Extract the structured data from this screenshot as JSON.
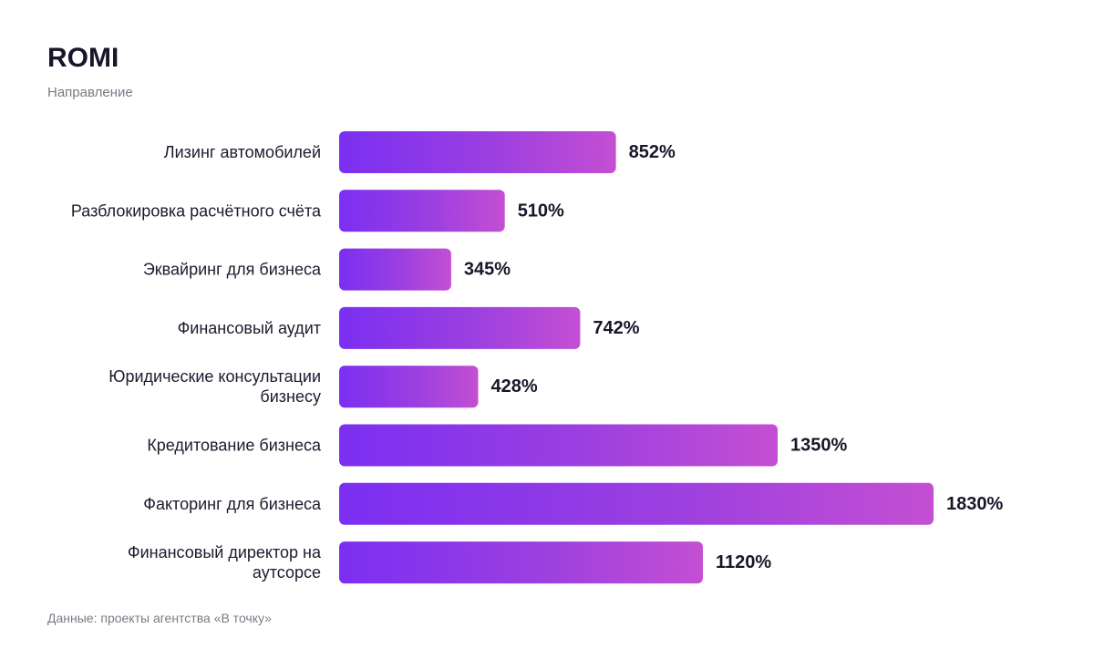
{
  "chart_data": {
    "type": "bar",
    "orientation": "horizontal",
    "title": "ROMI",
    "subtitle": "Направление",
    "categories": [
      "Лизинг автомобилей",
      "Разблокировка расчётного счёта",
      "Эквайринг для бизнеса",
      "Финансовый аудит",
      "Юридические консультации бизнесу",
      "Кредитование бизнеса",
      "Факторинг для бизнеса",
      "Финансовый директор на аутсорсе"
    ],
    "category_lines": [
      [
        "Лизинг автомобилей"
      ],
      [
        "Разблокировка расчётного счёта"
      ],
      [
        "Эквайринг для бизнеса"
      ],
      [
        "Финансовый аудит"
      ],
      [
        "Юридические консультации",
        "бизнесу"
      ],
      [
        "Кредитование бизнеса"
      ],
      [
        "Факторинг для бизнеса"
      ],
      [
        "Финансовый директор на",
        "аутсорсе"
      ]
    ],
    "values": [
      852,
      510,
      345,
      742,
      428,
      1350,
      1830,
      1120
    ],
    "value_labels": [
      "852%",
      "510%",
      "345%",
      "742%",
      "428%",
      "1350%",
      "1830%",
      "1120%"
    ],
    "unit": "%",
    "xlim": [
      0,
      1830
    ],
    "grid": false,
    "legend": "none",
    "colors": {
      "bar_gradient_start": "#7b2ff2",
      "bar_gradient_mid": "#9b3fe0",
      "bar_gradient_end": "#c44fd3",
      "label": "#1c1b2e",
      "value": "#17162a"
    }
  },
  "footnote": "Данные: проекты агентства «В точку»"
}
